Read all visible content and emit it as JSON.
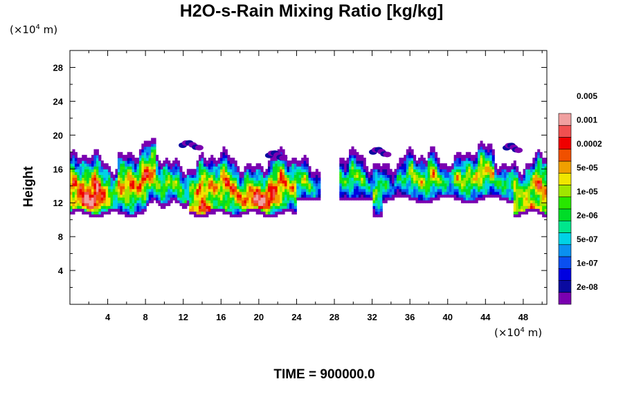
{
  "chart_data": {
    "type": "contourf",
    "title": "H2O-s-Rain Mixing Ratio [kg/kg]",
    "xlabel": "",
    "ylabel": "Height",
    "x_units_base": "(×10",
    "x_units_exp": "4",
    "x_units_tail": " m)",
    "y_units_base": "(×10",
    "y_units_exp": "4",
    "y_units_tail": " m)",
    "footer": "TIME = 900000.0",
    "xlim": [
      0,
      50.5
    ],
    "ylim": [
      0,
      30
    ],
    "xticks": [
      4,
      8,
      12,
      16,
      20,
      24,
      28,
      32,
      36,
      40,
      44,
      48
    ],
    "yticks": [
      4,
      8,
      12,
      16,
      20,
      24,
      28
    ],
    "colorbar": {
      "colors": [
        "#7a00b0",
        "#0a0aa0",
        "#0000e0",
        "#0a50f0",
        "#0a90f0",
        "#00d2e6",
        "#00e68c",
        "#00dc28",
        "#28e600",
        "#a0e600",
        "#f0e600",
        "#f0a000",
        "#f05000",
        "#f00000",
        "#f05050",
        "#f0a0a0"
      ],
      "labels": [
        "2e-08",
        "1e-07",
        "5e-07",
        "2e-06",
        "1e-05",
        "5e-05",
        "0.0002",
        "0.001",
        "0.005"
      ],
      "label_band_index": [
        1,
        3,
        5,
        7,
        9,
        11,
        13,
        15,
        17
      ]
    },
    "field_summary": {
      "main_layer_height_range": [
        10.5,
        18
      ],
      "core_maxima_x": [
        2,
        14,
        20,
        49
      ],
      "core_maxima_height": [
        12,
        11,
        12,
        11
      ],
      "gap_x_range": [
        26.5,
        28.5
      ]
    }
  }
}
